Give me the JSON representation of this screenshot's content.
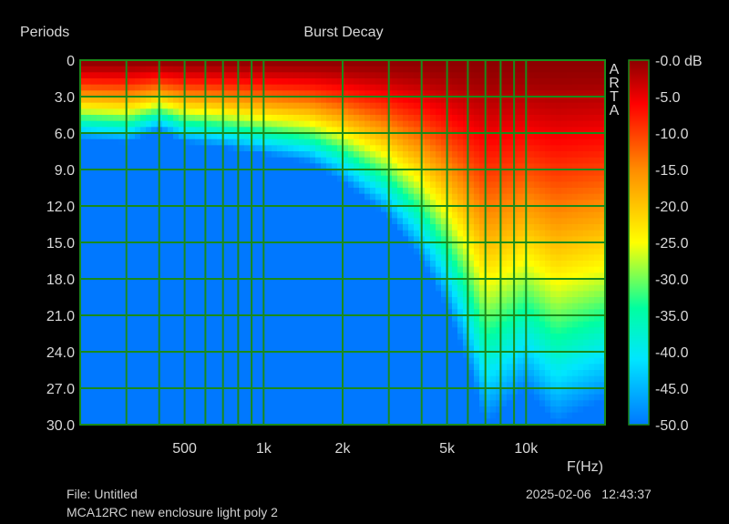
{
  "chart_data": {
    "type": "heatmap",
    "title": "Burst Decay",
    "ylabel": "Periods",
    "xlabel": "F(Hz)",
    "x_scale": "log",
    "xlim": [
      200,
      20000
    ],
    "ylim": [
      0,
      30
    ],
    "y_inverted": true,
    "x_ticks": [
      {
        "value": 500,
        "label": "500"
      },
      {
        "value": 1000,
        "label": "1k"
      },
      {
        "value": 2000,
        "label": "2k"
      },
      {
        "value": 5000,
        "label": "5k"
      },
      {
        "value": 10000,
        "label": "10k"
      }
    ],
    "x_grid": [
      300,
      400,
      500,
      600,
      700,
      800,
      900,
      1000,
      2000,
      3000,
      4000,
      5000,
      6000,
      7000,
      8000,
      9000,
      10000,
      20000
    ],
    "y_ticks": [
      "0",
      "3.0",
      "6.0",
      "9.0",
      "12.0",
      "15.0",
      "18.0",
      "21.0",
      "24.0",
      "27.0",
      "30.0"
    ],
    "colorbar": {
      "range_db": [
        -50,
        0
      ],
      "labels": [
        "-0.0 dB",
        "-5.0",
        "-10.0",
        "-15.0",
        "-20.0",
        "-25.0",
        "-30.0",
        "-35.0",
        "-40.0",
        "-45.0",
        "-50.0"
      ]
    },
    "side_label": [
      "A",
      "R",
      "T",
      "A"
    ],
    "decay_profile": {
      "freq_hz": [
        200,
        300,
        400,
        500,
        700,
        1000,
        1500,
        2000,
        3000,
        4000,
        5000,
        6000,
        7000,
        8000,
        10000,
        13000,
        16000,
        20000
      ],
      "time_to_floor_periods": [
        6.5,
        6.8,
        5.8,
        6.8,
        7.2,
        7.8,
        8.5,
        10.0,
        13.0,
        16.5,
        20.5,
        25.0,
        30.0,
        29.0,
        27.0,
        30.0,
        29.0,
        28.0
      ],
      "floor_db": -50
    },
    "grid": true
  },
  "footer": {
    "file": "File: Untitled",
    "description": "MCA12RC new enclosure light poly 2",
    "timestamp": "2025-02-06   12:43:37"
  }
}
